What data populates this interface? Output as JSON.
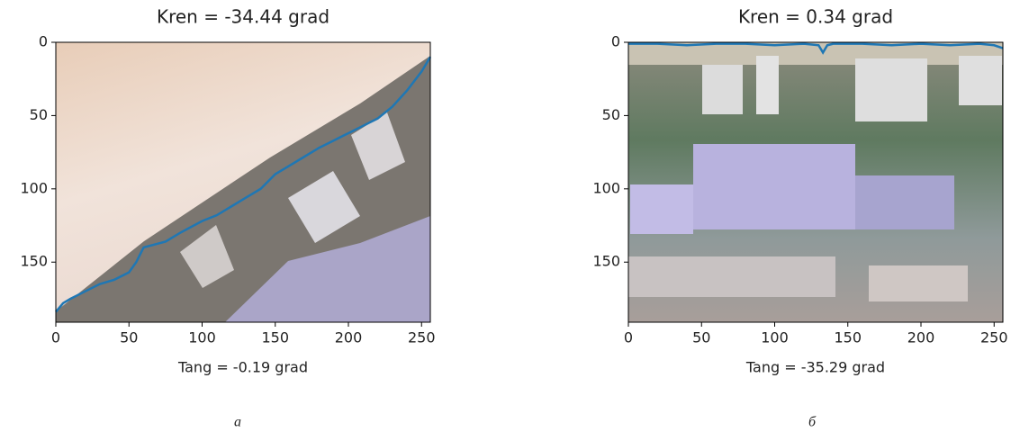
{
  "chart_data": [
    {
      "type": "line",
      "title": "Kren = -34.44 grad",
      "xlabel": "Tang = -0.19 grad",
      "x": [
        0,
        5,
        10,
        20,
        30,
        40,
        50,
        55,
        60,
        75,
        85,
        100,
        110,
        120,
        130,
        140,
        150,
        160,
        170,
        180,
        190,
        200,
        210,
        220,
        230,
        240,
        250,
        256
      ],
      "values": [
        184,
        178,
        175,
        170,
        165,
        162,
        157,
        150,
        140,
        136,
        130,
        122,
        118,
        112,
        106,
        100,
        90,
        84,
        78,
        72,
        67,
        62,
        57,
        52,
        44,
        33,
        20,
        10
      ],
      "color": "#1f77b4",
      "xlim": [
        0,
        256
      ],
      "ylim": [
        191,
        0
      ],
      "xticks": [
        0,
        50,
        100,
        150,
        200,
        250
      ],
      "yticks": [
        0,
        50,
        100,
        150
      ]
    },
    {
      "type": "line",
      "title": "Kren = 0.34 grad",
      "xlabel": "Tang = -35.29 grad",
      "x": [
        0,
        20,
        40,
        60,
        80,
        100,
        120,
        130,
        133,
        136,
        140,
        160,
        180,
        200,
        220,
        240,
        250,
        256
      ],
      "values": [
        1,
        1,
        2,
        1,
        1,
        2,
        1,
        2,
        7,
        2,
        1,
        1,
        2,
        1,
        2,
        1,
        2,
        4
      ],
      "color": "#1f77b4",
      "xlim": [
        0,
        256
      ],
      "ylim": [
        191,
        0
      ],
      "xticks": [
        0,
        50,
        100,
        150,
        200,
        250
      ],
      "yticks": [
        0,
        50,
        100,
        150
      ]
    }
  ],
  "figure_labels": [
    "а",
    "б"
  ]
}
